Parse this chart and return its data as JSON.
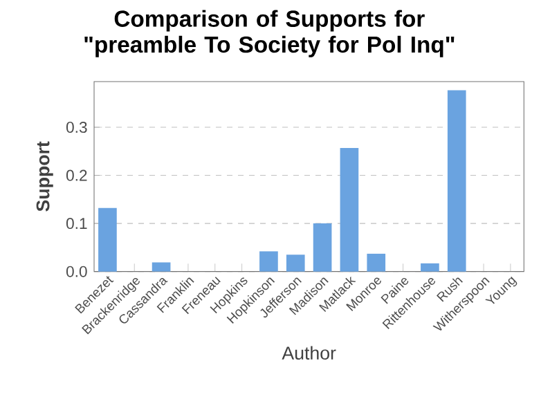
{
  "chart_data": {
    "type": "bar",
    "title": "Comparison of Supports for \"preamble To Society for Pol Inq\"",
    "xlabel": "Author",
    "ylabel": "Support",
    "categories": [
      "Benezet",
      "Brackenridge",
      "Cassandra",
      "Franklin",
      "Freneau",
      "Hopkins",
      "Hopkinson",
      "Jefferson",
      "Madison",
      "Matlack",
      "Monroe",
      "Paine",
      "Rittenhouse",
      "Rush",
      "Witherspoon",
      "Young"
    ],
    "values": [
      0.132,
      0,
      0.019,
      0,
      0,
      0,
      0.042,
      0.035,
      0.1,
      0.257,
      0.037,
      0,
      0.017,
      0.377,
      0,
      0
    ],
    "color": "#6aa3e0",
    "ylim": [
      0,
      0.395
    ],
    "yticks": [
      {
        "value": 0,
        "label": "0.0"
      },
      0.1,
      0.2,
      0.3
    ],
    "grid": "y"
  }
}
